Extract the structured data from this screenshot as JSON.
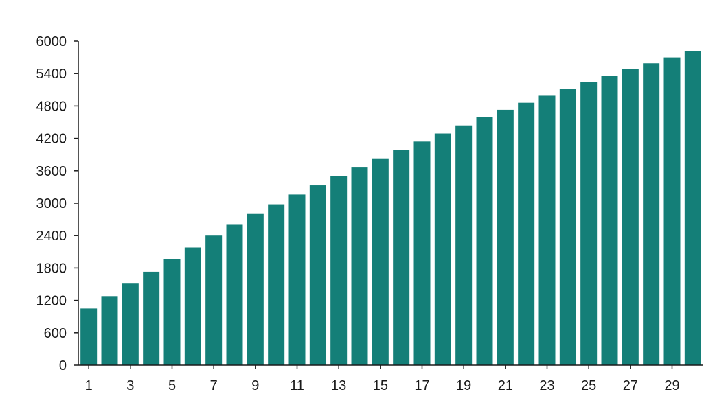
{
  "chart_data": {
    "type": "bar",
    "title": "",
    "xlabel": "",
    "ylabel": "",
    "x": [
      1,
      2,
      3,
      4,
      5,
      6,
      7,
      8,
      9,
      10,
      11,
      12,
      13,
      14,
      15,
      16,
      17,
      18,
      19,
      20,
      21,
      22,
      23,
      24,
      25,
      26,
      27,
      28,
      29,
      30
    ],
    "values": [
      1050,
      1280,
      1510,
      1730,
      1960,
      2180,
      2400,
      2600,
      2800,
      2980,
      3160,
      3330,
      3500,
      3660,
      3830,
      3990,
      4140,
      4290,
      4440,
      4590,
      4730,
      4860,
      4990,
      5110,
      5240,
      5360,
      5480,
      5590,
      5700,
      5810
    ],
    "x_tick_labels": [
      "1",
      "3",
      "5",
      "7",
      "9",
      "11",
      "13",
      "15",
      "17",
      "19",
      "21",
      "23",
      "25",
      "27",
      "29"
    ],
    "y_tick_labels": [
      "0",
      "600",
      "1200",
      "1800",
      "2400",
      "3000",
      "3600",
      "4200",
      "4800",
      "5400",
      "6000"
    ],
    "ylim": [
      0,
      6000
    ],
    "grid": false,
    "legend": "none",
    "bar_color": "#147f78",
    "axis_color": "#1a1a1a"
  }
}
